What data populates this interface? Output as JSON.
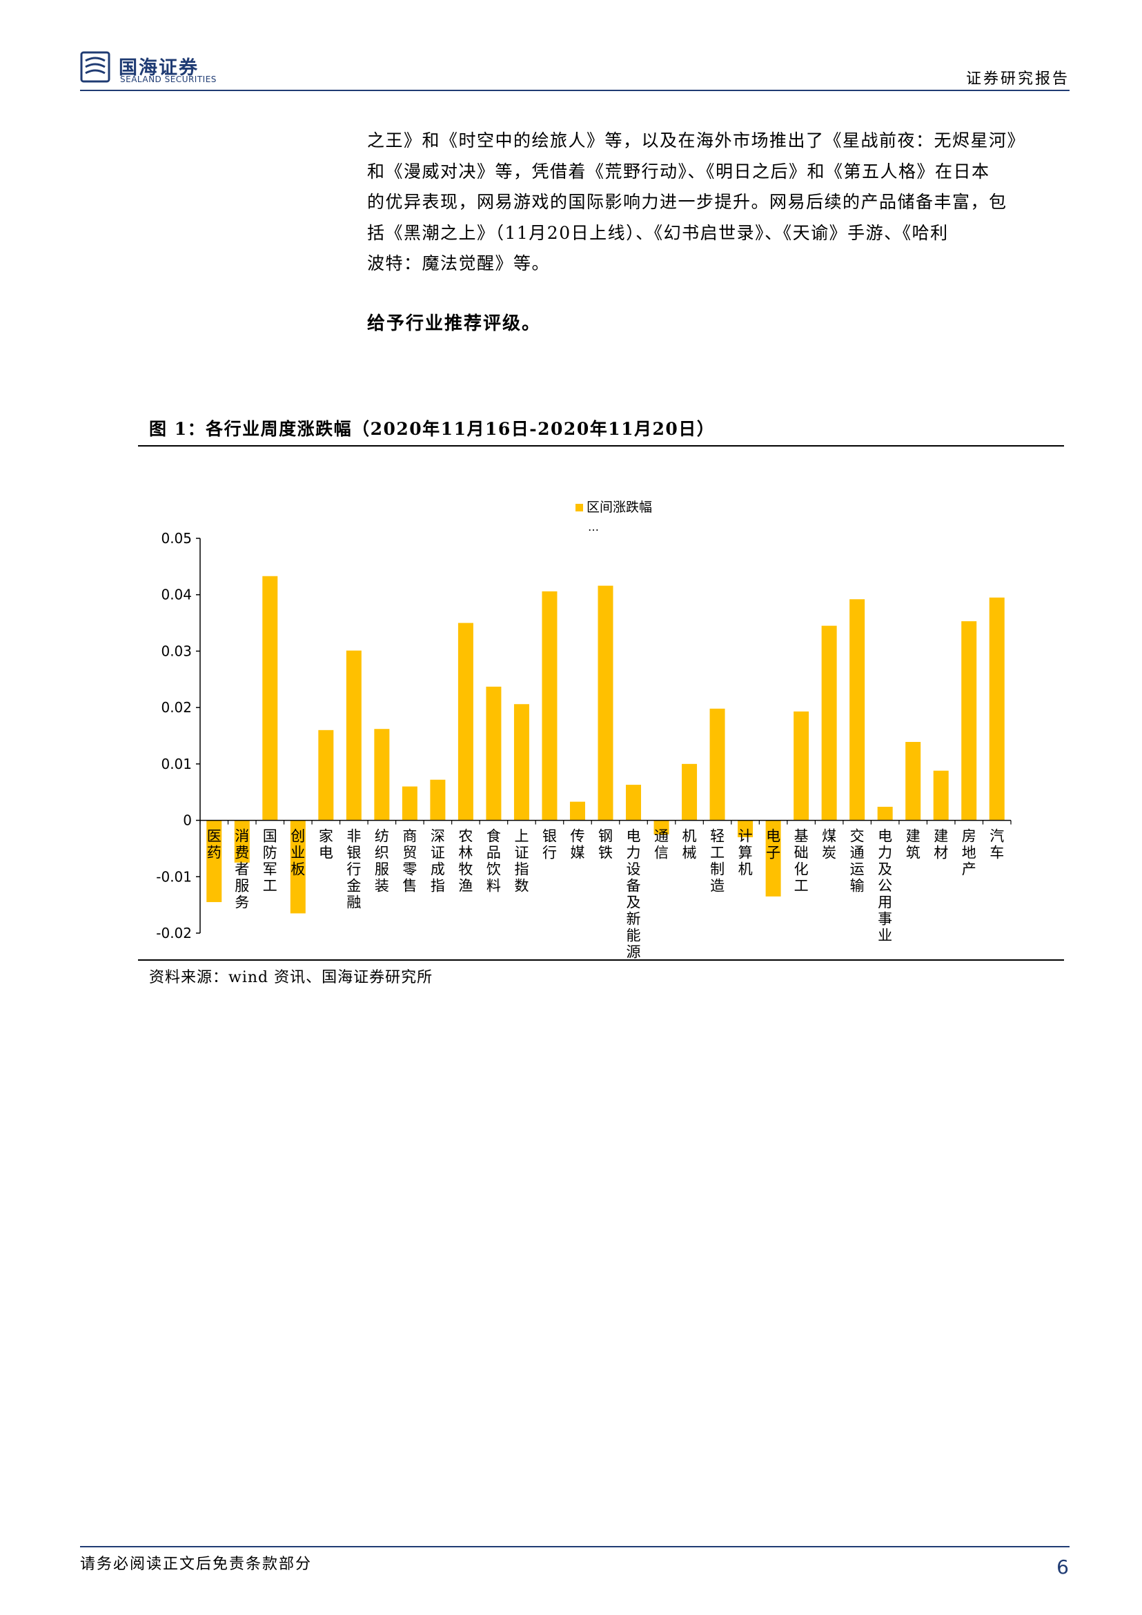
{
  "header": {
    "brand_cn": "国海证券",
    "brand_en": "SEALAND SECURITIES",
    "report_type": "证券研究报告",
    "brand_color": "#1f3b73"
  },
  "body": {
    "paragraph_lines": [
      "之王》和《时空中的绘旅人》等，以及在海外市场推出了《星战前夜：无烬星河》",
      "和《漫威对决》等，凭借着《荒野行动》、《明日之后》和《第五人格》在日本",
      "的优异表现，网易游戏的国际影响力进一步提升。网易后续的产品储备丰富，包",
      "括《黑潮之上》（11月20日上线）、《幻书启世录》、《天谕》手游、《哈利",
      "波特：魔法觉醒》等。"
    ],
    "recommendation": "给予行业推荐评级。"
  },
  "figure": {
    "title": "图 1：各行业周度涨跌幅（2020年11月16日-2020年11月20日）",
    "source": "资料来源：wind 资讯、国海证券研究所"
  },
  "chart_data": {
    "type": "bar",
    "categories": [
      "医药",
      "消费者服务",
      "国防军工",
      "创业板",
      "家电",
      "非银行金融",
      "纺织服装",
      "商贸零售",
      "深证成指",
      "农林牧渔",
      "食品饮料",
      "上证指数",
      "银行",
      "传媒",
      "钢铁",
      "电力设备及新能源",
      "通信",
      "机械",
      "轻工制造",
      "计算机",
      "电子",
      "基础化工",
      "煤炭",
      "交通运输",
      "电力及公用事业",
      "建筑",
      "建材",
      "房地产",
      "汽车"
    ],
    "series": [
      {
        "name": "区间涨跌幅",
        "values": [
          -0.0145,
          -0.0075,
          0.0433,
          -0.0165,
          0.016,
          0.0301,
          0.0162,
          0.006,
          0.0072,
          0.035,
          0.0237,
          0.0206,
          0.0406,
          0.0033,
          0.0416,
          0.0063,
          -0.0025,
          0.01,
          0.0198,
          -0.003,
          -0.0135,
          0.0193,
          0.0345,
          0.0392,
          0.0024,
          0.0139,
          0.0088,
          0.0353,
          0.0395
        ]
      }
    ],
    "legend_extra": "…",
    "ylim": [
      -0.02,
      0.05
    ],
    "yticks": [
      "0.05",
      "0.04",
      "0.03",
      "0.02",
      "0.01",
      "0",
      "-0.01",
      "-0.02"
    ],
    "bar_color": "#ffc000",
    "legend_position": "top-center",
    "grid": false
  },
  "footer": {
    "disclaimer": "请务必阅读正文后免责条款部分",
    "page": "6"
  }
}
